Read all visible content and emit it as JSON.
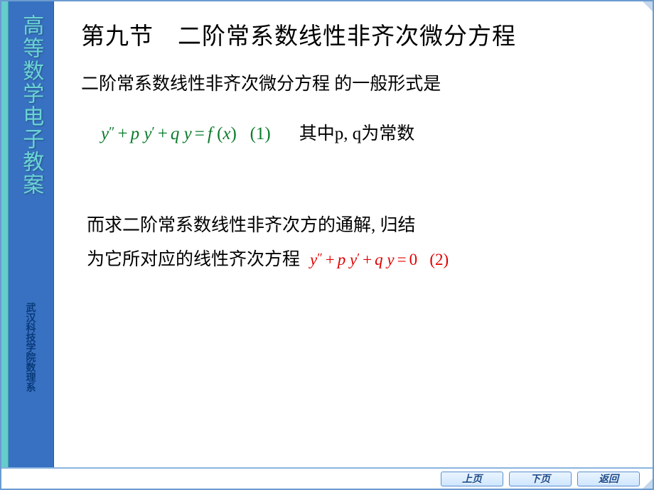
{
  "frame": {
    "border_color": "#6b9bd1",
    "accent_strip_color": "#66cccc",
    "sidebar_bg": "#3871c1"
  },
  "sidebar": {
    "title": "高等数学电子教案",
    "title_color": "#6ad4d4",
    "title_fontsize": 30,
    "sub": "武汉科技学院数理系",
    "sub_color": "#093a7a",
    "sub_fontsize": 14
  },
  "content": {
    "title": "第九节　二阶常系数线性非齐次微分方程",
    "title_fontsize": 33,
    "line1": "二阶常系数线性非齐次微分方程   的一般形式是",
    "equation1": {
      "raw": "y″ + py′ + qy = f (x)    (1)",
      "color": "#0a7a2a",
      "fontsize": 25,
      "label": "(1)"
    },
    "eq1_note": "其中p, q为常数",
    "para2_l1": "而求二阶常系数线性非齐次方的通解, 归结",
    "para2_l2_text": "为它所对应的线性齐次方程",
    "equation2": {
      "raw": "y″ + py′ + qy = 0    (2)",
      "color": "#e00000",
      "fontsize": 23,
      "label": "(2)"
    }
  },
  "nav": {
    "prev": "上页",
    "next": "下页",
    "back": "返回"
  }
}
